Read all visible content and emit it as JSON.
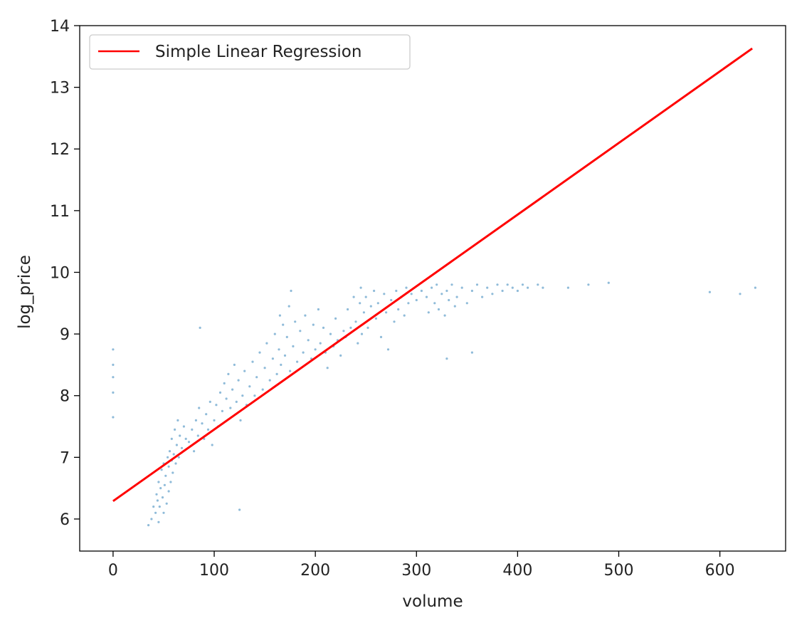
{
  "chart_data": {
    "type": "scatter",
    "title": "",
    "xlabel": "volume",
    "ylabel": "log_price",
    "xlim": [
      -33,
      665
    ],
    "ylim": [
      5.48,
      14.0
    ],
    "xticks": [
      0,
      100,
      200,
      300,
      400,
      500,
      600
    ],
    "yticks": [
      6,
      7,
      8,
      9,
      10,
      11,
      12,
      13,
      14
    ],
    "grid": false,
    "legend": {
      "placement": "top-left",
      "entries": [
        "Simple Linear Regression"
      ]
    },
    "colors": {
      "scatter": "#1f77b4",
      "regression": "#ff0000"
    },
    "series": [
      {
        "kind": "scatter",
        "points": [
          [
            0,
            8.75
          ],
          [
            0,
            8.5
          ],
          [
            0,
            8.3
          ],
          [
            0,
            8.05
          ],
          [
            0,
            7.65
          ],
          [
            35,
            5.9
          ],
          [
            38,
            6.0
          ],
          [
            40,
            6.2
          ],
          [
            42,
            6.1
          ],
          [
            43,
            6.4
          ],
          [
            44,
            6.3
          ],
          [
            45,
            5.95
          ],
          [
            45,
            6.6
          ],
          [
            46,
            6.2
          ],
          [
            47,
            6.5
          ],
          [
            48,
            6.8
          ],
          [
            49,
            6.35
          ],
          [
            50,
            6.1
          ],
          [
            50,
            6.9
          ],
          [
            51,
            6.55
          ],
          [
            52,
            6.7
          ],
          [
            53,
            6.25
          ],
          [
            54,
            7.0
          ],
          [
            55,
            6.45
          ],
          [
            55,
            6.85
          ],
          [
            56,
            7.1
          ],
          [
            57,
            6.6
          ],
          [
            58,
            6.95
          ],
          [
            58,
            7.3
          ],
          [
            59,
            6.75
          ],
          [
            60,
            7.05
          ],
          [
            61,
            7.45
          ],
          [
            62,
            6.9
          ],
          [
            63,
            7.2
          ],
          [
            64,
            7.6
          ],
          [
            65,
            7.0
          ],
          [
            66,
            7.35
          ],
          [
            68,
            7.15
          ],
          [
            70,
            7.5
          ],
          [
            72,
            7.3
          ],
          [
            75,
            7.25
          ],
          [
            78,
            7.45
          ],
          [
            80,
            7.1
          ],
          [
            82,
            7.6
          ],
          [
            84,
            7.35
          ],
          [
            85,
            7.8
          ],
          [
            86,
            9.1
          ],
          [
            88,
            7.55
          ],
          [
            90,
            7.3
          ],
          [
            92,
            7.7
          ],
          [
            94,
            7.45
          ],
          [
            96,
            7.9
          ],
          [
            98,
            7.2
          ],
          [
            100,
            7.6
          ],
          [
            102,
            7.85
          ],
          [
            104,
            7.5
          ],
          [
            106,
            8.05
          ],
          [
            108,
            7.75
          ],
          [
            110,
            8.2
          ],
          [
            112,
            7.95
          ],
          [
            114,
            8.35
          ],
          [
            116,
            7.8
          ],
          [
            118,
            8.1
          ],
          [
            120,
            8.5
          ],
          [
            122,
            7.9
          ],
          [
            124,
            8.25
          ],
          [
            125,
            6.15
          ],
          [
            126,
            7.6
          ],
          [
            128,
            8.0
          ],
          [
            130,
            8.4
          ],
          [
            132,
            7.85
          ],
          [
            135,
            8.15
          ],
          [
            138,
            8.55
          ],
          [
            140,
            8.0
          ],
          [
            142,
            8.3
          ],
          [
            145,
            8.7
          ],
          [
            148,
            8.1
          ],
          [
            150,
            8.45
          ],
          [
            152,
            8.85
          ],
          [
            155,
            8.25
          ],
          [
            158,
            8.6
          ],
          [
            160,
            9.0
          ],
          [
            162,
            8.35
          ],
          [
            164,
            8.75
          ],
          [
            165,
            9.3
          ],
          [
            166,
            8.5
          ],
          [
            168,
            9.15
          ],
          [
            170,
            8.65
          ],
          [
            172,
            8.95
          ],
          [
            174,
            9.45
          ],
          [
            175,
            8.4
          ],
          [
            176,
            9.7
          ],
          [
            178,
            8.8
          ],
          [
            180,
            9.2
          ],
          [
            182,
            8.55
          ],
          [
            185,
            9.05
          ],
          [
            188,
            8.7
          ],
          [
            190,
            9.3
          ],
          [
            193,
            8.9
          ],
          [
            196,
            8.6
          ],
          [
            198,
            9.15
          ],
          [
            200,
            8.75
          ],
          [
            203,
            9.4
          ],
          [
            205,
            8.85
          ],
          [
            208,
            9.1
          ],
          [
            210,
            8.7
          ],
          [
            212,
            8.45
          ],
          [
            215,
            9.0
          ],
          [
            218,
            8.8
          ],
          [
            220,
            9.25
          ],
          [
            222,
            8.9
          ],
          [
            225,
            8.65
          ],
          [
            228,
            9.05
          ],
          [
            230,
            8.95
          ],
          [
            232,
            9.4
          ],
          [
            235,
            9.1
          ],
          [
            238,
            9.6
          ],
          [
            240,
            9.2
          ],
          [
            242,
            8.85
          ],
          [
            244,
            9.5
          ],
          [
            245,
            9.75
          ],
          [
            246,
            9.0
          ],
          [
            248,
            9.35
          ],
          [
            250,
            9.6
          ],
          [
            252,
            9.1
          ],
          [
            255,
            9.45
          ],
          [
            258,
            9.7
          ],
          [
            260,
            9.25
          ],
          [
            262,
            9.5
          ],
          [
            265,
            8.95
          ],
          [
            268,
            9.65
          ],
          [
            270,
            9.35
          ],
          [
            272,
            8.75
          ],
          [
            275,
            9.55
          ],
          [
            278,
            9.2
          ],
          [
            280,
            9.7
          ],
          [
            282,
            9.4
          ],
          [
            285,
            9.6
          ],
          [
            288,
            9.3
          ],
          [
            290,
            9.75
          ],
          [
            292,
            9.5
          ],
          [
            295,
            9.65
          ],
          [
            300,
            9.55
          ],
          [
            305,
            9.7
          ],
          [
            310,
            9.6
          ],
          [
            312,
            9.35
          ],
          [
            315,
            9.75
          ],
          [
            318,
            9.5
          ],
          [
            320,
            9.8
          ],
          [
            322,
            9.4
          ],
          [
            325,
            9.65
          ],
          [
            328,
            9.3
          ],
          [
            330,
            9.7
          ],
          [
            332,
            9.55
          ],
          [
            335,
            9.8
          ],
          [
            338,
            9.45
          ],
          [
            340,
            9.6
          ],
          [
            345,
            9.75
          ],
          [
            350,
            9.5
          ],
          [
            355,
            9.7
          ],
          [
            360,
            9.8
          ],
          [
            365,
            9.6
          ],
          [
            370,
            9.75
          ],
          [
            375,
            9.65
          ],
          [
            380,
            9.8
          ],
          [
            385,
            9.7
          ],
          [
            390,
            9.8
          ],
          [
            395,
            9.75
          ],
          [
            400,
            9.7
          ],
          [
            405,
            9.8
          ],
          [
            410,
            9.75
          ],
          [
            420,
            9.8
          ],
          [
            425,
            9.75
          ],
          [
            450,
            9.75
          ],
          [
            470,
            9.8
          ],
          [
            490,
            9.83
          ],
          [
            590,
            9.68
          ],
          [
            620,
            9.65
          ],
          [
            635,
            9.75
          ],
          [
            330,
            8.6
          ],
          [
            355,
            8.7
          ]
        ]
      },
      {
        "kind": "line",
        "name": "Simple Linear Regression",
        "x": [
          0,
          632
        ],
        "y": [
          6.29,
          13.63
        ]
      }
    ]
  }
}
